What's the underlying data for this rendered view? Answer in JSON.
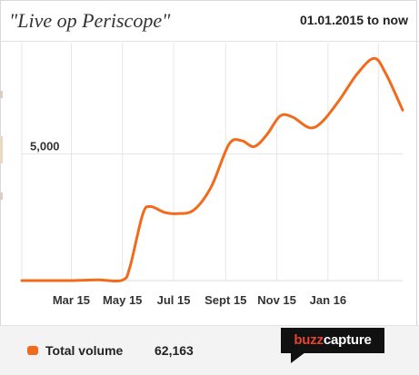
{
  "header": {
    "title": "\"Live op Periscope\"",
    "date_range": "01.01.2015 to now"
  },
  "legend": {
    "label": "Total volume",
    "total": "62,163",
    "color": "#f26a1b"
  },
  "logo": {
    "part1": "buzz",
    "part2": "capture",
    "accent": "#e8442b"
  },
  "chart_data": {
    "type": "line",
    "title": "\"Live op Periscope\"",
    "x_tick_labels": [
      "Mar 15",
      "May 15",
      "Jul 15",
      "Sept 15",
      "Nov 15",
      "Jan 16"
    ],
    "y_tick_labels": [
      "5,000"
    ],
    "ylim": [
      0,
      9500
    ],
    "grid": true,
    "legend_position": "bottom-left",
    "series": [
      {
        "name": "Total volume",
        "color": "#f26a1b",
        "points": [
          [
            "2015-01-01",
            0
          ],
          [
            "2015-02-01",
            0
          ],
          [
            "2015-03-01",
            0
          ],
          [
            "2015-04-01",
            30
          ],
          [
            "2015-05-01",
            20
          ],
          [
            "2015-05-10",
            600
          ],
          [
            "2015-05-25",
            2800
          ],
          [
            "2015-06-03",
            3150
          ],
          [
            "2015-06-20",
            2900
          ],
          [
            "2015-07-05",
            2850
          ],
          [
            "2015-07-25",
            3000
          ],
          [
            "2015-08-15",
            4000
          ],
          [
            "2015-09-05",
            5800
          ],
          [
            "2015-09-20",
            5950
          ],
          [
            "2015-10-05",
            5700
          ],
          [
            "2015-10-20",
            6200
          ],
          [
            "2015-11-05",
            7000
          ],
          [
            "2015-11-20",
            6950
          ],
          [
            "2015-12-10",
            6500
          ],
          [
            "2015-12-25",
            6750
          ],
          [
            "2016-01-15",
            7700
          ],
          [
            "2016-02-05",
            8800
          ],
          [
            "2016-02-25",
            9450
          ],
          [
            "2016-03-10",
            8800
          ],
          [
            "2016-03-30",
            7250
          ]
        ]
      }
    ]
  }
}
